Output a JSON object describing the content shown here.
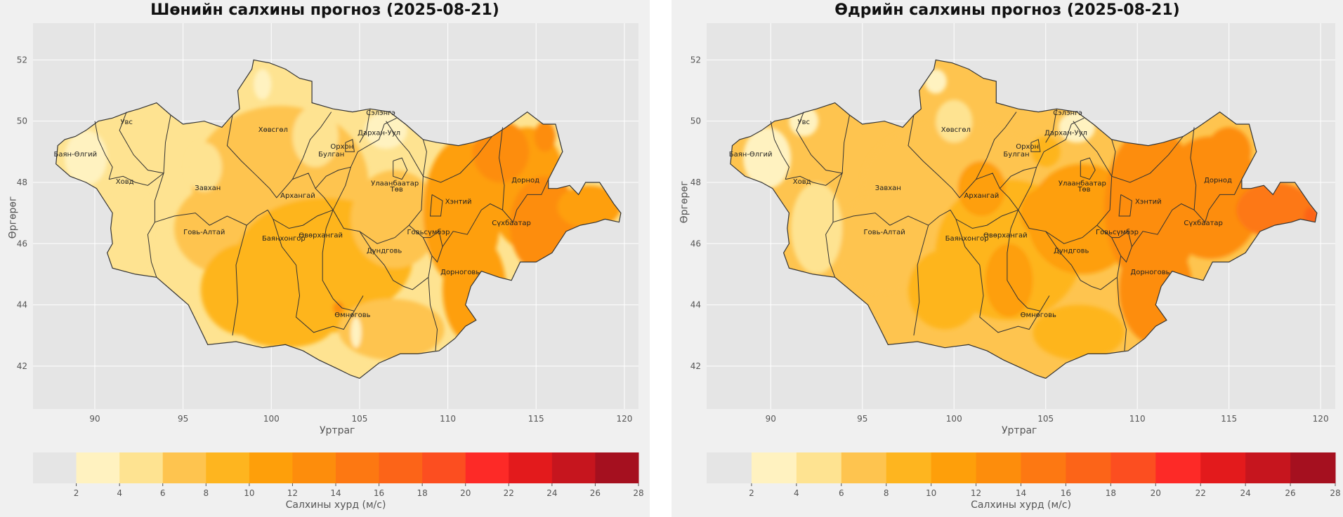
{
  "colors": {
    "figure_bg": "#f0f0f0",
    "axes_bg": "#e5e5e5",
    "grid": "#ffffff",
    "border": "#333333",
    "scale": [
      "#e5e5e5",
      "#fff2c0",
      "#fee391",
      "#fec44f",
      "#feb51f",
      "#fe9f0a",
      "#fd8d0c",
      "#fd7812",
      "#fc6418",
      "#fc4e20",
      "#fd2a27",
      "#e31a1c",
      "#c6151e",
      "#a5101f"
    ]
  },
  "panels": [
    {
      "title": "Шөнийн салхины прогноз (2025-08-21)",
      "xlabel": "Уртраг",
      "ylabel": "Өргөрөг",
      "cbar_label": "Салхины хурд (м/с)",
      "tone": "night"
    },
    {
      "title": "Өдрийн салхины прогноз (2025-08-21)",
      "xlabel": "Уртраг",
      "ylabel": "Өргөрөг",
      "cbar_label": "Салхины хурд (м/с)",
      "tone": "day"
    }
  ],
  "x_ticks": [
    "90",
    "95",
    "100",
    "105",
    "110",
    "115",
    "120"
  ],
  "y_ticks": [
    "42",
    "44",
    "46",
    "48",
    "50",
    "52"
  ],
  "colorbar_ticks": [
    "2",
    "4",
    "6",
    "8",
    "10",
    "12",
    "14",
    "16",
    "18",
    "20",
    "22",
    "24",
    "26",
    "28"
  ],
  "regions": [
    "Увс",
    "Баян-Өлгий",
    "Ховд",
    "Завхан",
    "Хөвсгөл",
    "Архангай",
    "Булган",
    "Орхон",
    "Сэлэнгэ",
    "Дархан-Уул",
    "Улаанбаатар",
    "Төв",
    "Хэнтий",
    "Дорнод",
    "Сүхбаатар",
    "Говь-Алтай",
    "Баянхонгор",
    "Өвөрхангай",
    "Дундговь",
    "Говьсүмбэр",
    "Дорноговь",
    "Өмнөговь"
  ]
}
